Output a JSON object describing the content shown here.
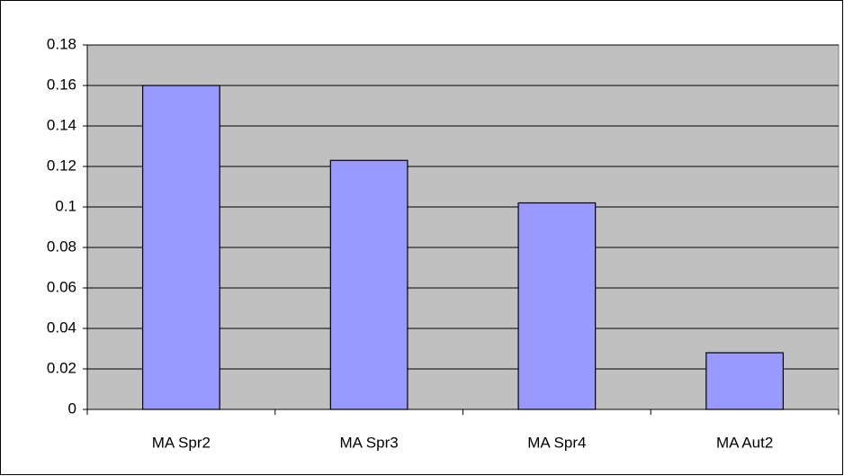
{
  "chart_data": {
    "type": "bar",
    "categories": [
      "MA Spr2",
      "MA Spr3",
      "MA Spr4",
      "MA Aut2"
    ],
    "values": [
      0.16,
      0.123,
      0.102,
      0.028
    ],
    "color": "#9999ff",
    "ylim": [
      0,
      0.18
    ],
    "yticks": [
      0,
      0.02,
      0.04,
      0.06,
      0.08,
      0.1,
      0.12,
      0.14,
      0.16,
      0.18
    ],
    "grid": true
  }
}
